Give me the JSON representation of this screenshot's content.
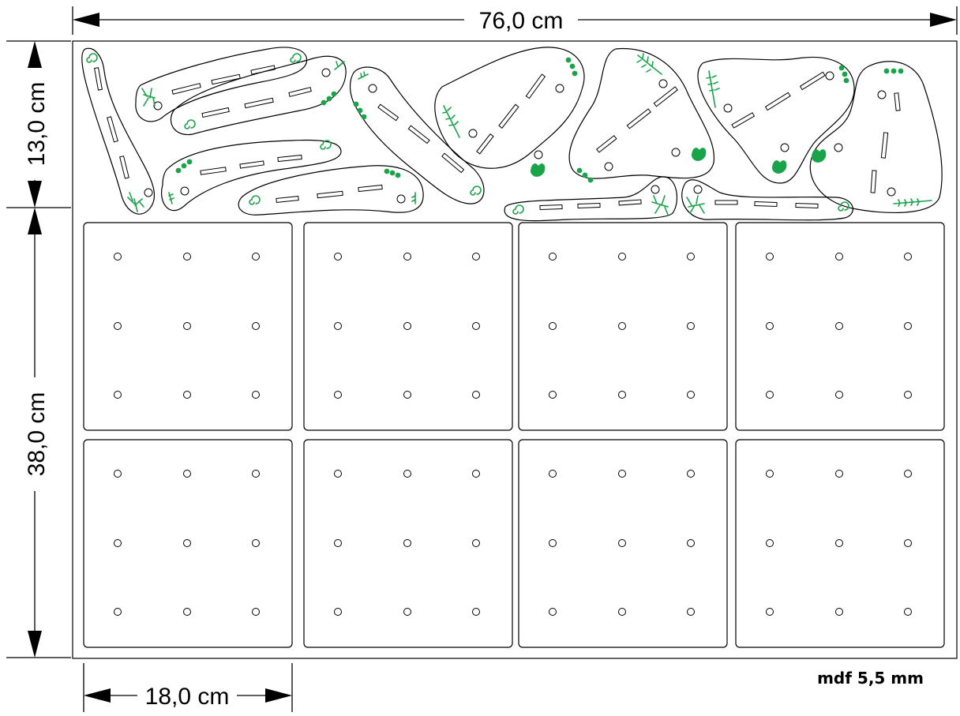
{
  "dimensions": {
    "width_label": "76,0 cm",
    "top_height_label": "13,0 cm",
    "bottom_height_label": "38,0 cm",
    "panel_width_label": "18,0 cm"
  },
  "material_note": "mdf 5,5 mm",
  "colors": {
    "cut_line": "#000000",
    "decoration": "#1aa44a"
  },
  "board_grid": {
    "rows": 2,
    "columns": 4,
    "holes_per_board": {
      "rows": 3,
      "columns": 3
    }
  }
}
